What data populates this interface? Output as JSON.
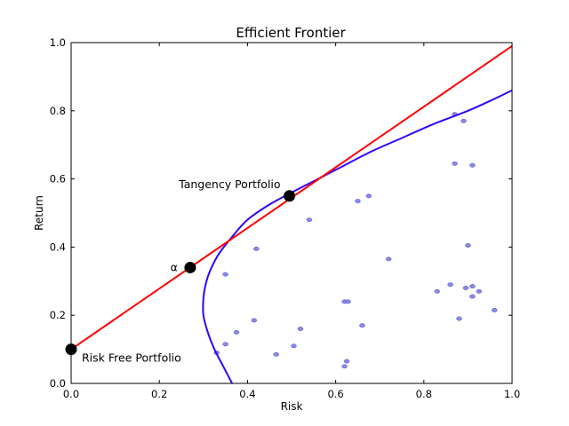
{
  "chart_data": {
    "type": "scatter",
    "title": "Efficient Frontier",
    "xlabel": "Risk",
    "ylabel": "Return",
    "xlim": [
      0.0,
      1.0
    ],
    "ylim": [
      0.0,
      1.0
    ],
    "xticks": [
      "0.0",
      "0.2",
      "0.4",
      "0.6",
      "0.8",
      "1.0"
    ],
    "yticks": [
      "0.0",
      "0.2",
      "0.4",
      "0.6",
      "0.8",
      "1.0"
    ],
    "grid": false,
    "colors": {
      "capital_market_line": "#ff0000",
      "efficient_frontier": "#3300ff",
      "assets": "#8888ee",
      "key_points": "#000000"
    },
    "capital_market_line": {
      "x": [
        0.0,
        1.0
      ],
      "y": [
        0.1,
        0.99
      ]
    },
    "efficient_frontier": {
      "x": [
        0.365,
        0.345,
        0.325,
        0.31,
        0.3,
        0.3,
        0.305,
        0.315,
        0.335,
        0.365,
        0.4,
        0.45,
        0.5,
        0.56,
        0.62,
        0.68,
        0.75,
        0.82,
        0.9,
        0.96,
        1.0
      ],
      "y": [
        0.0,
        0.05,
        0.1,
        0.15,
        0.2,
        0.25,
        0.29,
        0.33,
        0.38,
        0.43,
        0.48,
        0.525,
        0.56,
        0.6,
        0.64,
        0.68,
        0.72,
        0.76,
        0.8,
        0.835,
        0.86
      ]
    },
    "assets": {
      "x": [
        0.33,
        0.35,
        0.35,
        0.375,
        0.415,
        0.42,
        0.465,
        0.505,
        0.52,
        0.54,
        0.62,
        0.625,
        0.62,
        0.628,
        0.65,
        0.66,
        0.675,
        0.72,
        0.83,
        0.86,
        0.87,
        0.87,
        0.88,
        0.89,
        0.895,
        0.9,
        0.91,
        0.91,
        0.91,
        0.925,
        0.96
      ],
      "y": [
        0.09,
        0.115,
        0.32,
        0.15,
        0.185,
        0.395,
        0.085,
        0.11,
        0.16,
        0.48,
        0.05,
        0.065,
        0.24,
        0.24,
        0.535,
        0.17,
        0.55,
        0.365,
        0.27,
        0.29,
        0.645,
        0.79,
        0.19,
        0.77,
        0.28,
        0.405,
        0.64,
        0.255,
        0.285,
        0.27,
        0.215
      ]
    },
    "key_points": [
      {
        "label": "Risk Free Portfolio",
        "x": 0.0,
        "y": 0.1
      },
      {
        "label": "α",
        "x": 0.27,
        "y": 0.34
      },
      {
        "label": "Tangency Portfolio",
        "x": 0.495,
        "y": 0.55
      }
    ]
  }
}
